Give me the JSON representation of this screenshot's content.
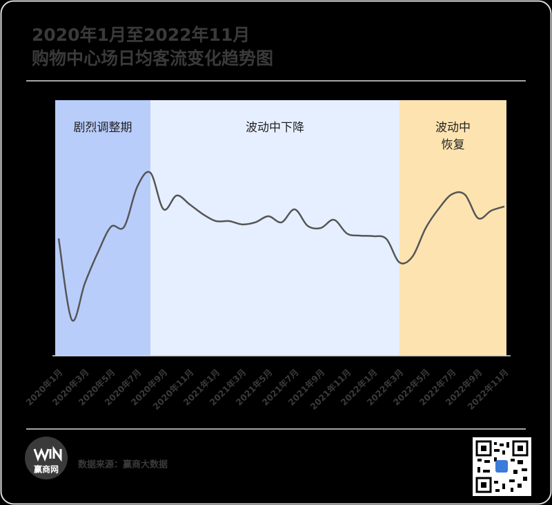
{
  "chart_data": {
    "type": "line",
    "title": [
      "2020年1月至2022年11月",
      "购物中心场日均客流变化趋势图"
    ],
    "categories": [
      "2020年1月",
      null,
      "2020年3月",
      null,
      "2020年5月",
      null,
      "2020年7月",
      null,
      "2020年9月",
      null,
      "2020年11月",
      null,
      "2021年1月",
      null,
      "2021年3月",
      null,
      "2021年5月",
      null,
      "2021年7月",
      null,
      "2021年9月",
      null,
      "2021年11月",
      null,
      "2022年1月",
      null,
      "2022年3月",
      null,
      "2022年5月",
      null,
      "2022年7月",
      null,
      "2022年9月",
      null,
      "2022年11月"
    ],
    "values": [
      45.9,
      14.1,
      28.4,
      40.5,
      50.5,
      50.5,
      66.2,
      71.6,
      57.3,
      62.7,
      59.2,
      55.4,
      52.7,
      52.7,
      51.4,
      52.2,
      54.6,
      52.2,
      57.3,
      50.8,
      50.0,
      53.2,
      47.8,
      47.0,
      46.8,
      45.7,
      36.5,
      38.9,
      50.0,
      57.6,
      63.2,
      63.0,
      53.8,
      56.8,
      58.4
    ],
    "color": "#555555",
    "ylim": [
      0,
      100
    ],
    "regions": [
      {
        "label": [
          "剧烈调整期"
        ],
        "x_start": 0,
        "x_end": 7,
        "color": "#b9cdfb"
      },
      {
        "label": [
          "波动中下降"
        ],
        "x_start": 7,
        "x_end": 26,
        "color": "#e6efff"
      },
      {
        "label": [
          "波动中",
          "恢复"
        ],
        "x_start": 26,
        "x_end": 34,
        "color": "#fde3b0"
      }
    ],
    "source": "数据来源：赢商大数据",
    "logo": "赢商网"
  }
}
